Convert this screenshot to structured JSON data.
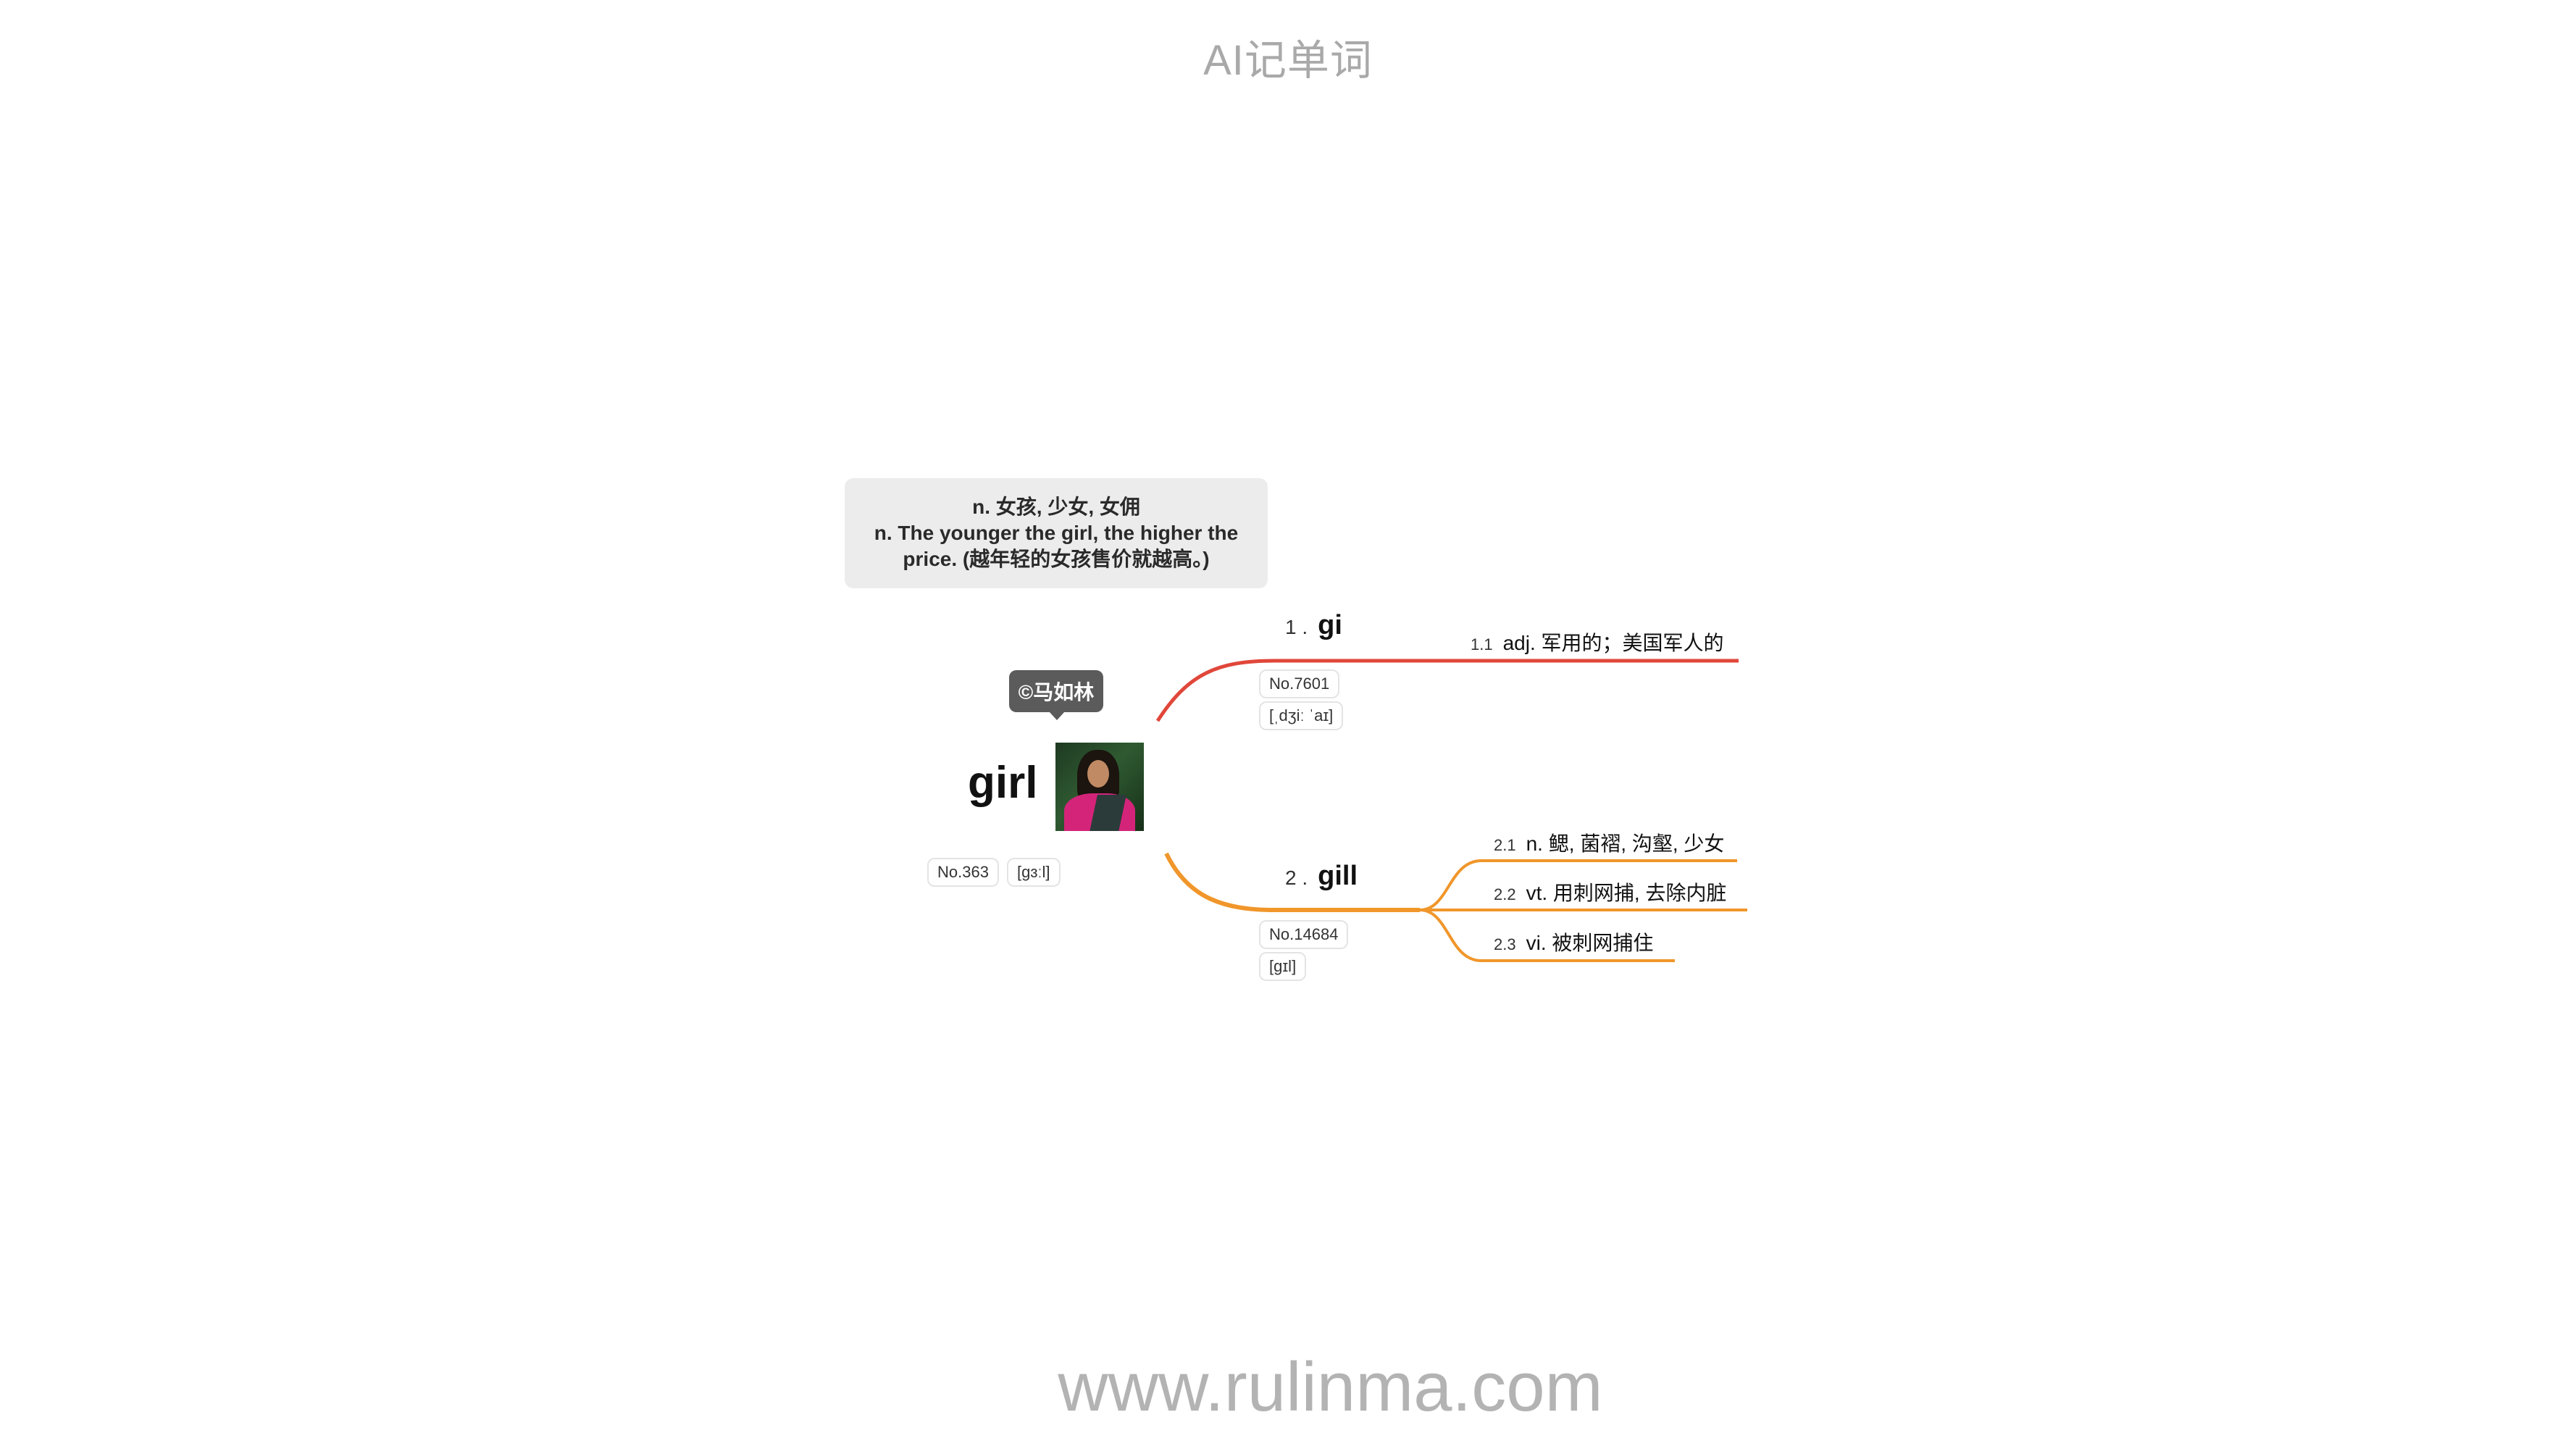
{
  "header": {
    "title": "AI记单词"
  },
  "footer": {
    "url": "www.rulinma.com"
  },
  "root": {
    "word": "girl",
    "credit": "©马如林",
    "number": "No.363",
    "phonetic": "[gɜːl]",
    "note": {
      "line1": "n. 女孩, 少女, 女佣",
      "line2": "n. The younger the girl, the higher the",
      "line3": "price. (越年轻的女孩售价就越高。)"
    }
  },
  "branches": [
    {
      "index": "1 .",
      "word": "gi",
      "number": "No.7601",
      "phonetic": "[ˌdʒiː ˈaɪ]",
      "color": "#e0473a",
      "senses": [
        {
          "index": "1.1",
          "text": "adj. 军用的；美国军人的"
        }
      ]
    },
    {
      "index": "2 .",
      "word": "gill",
      "number": "No.14684",
      "phonetic": "[gɪl]",
      "color": "#f0962a",
      "senses": [
        {
          "index": "2.1",
          "text": "n. 鳃, 菌褶, 沟壑, 少女"
        },
        {
          "index": "2.2",
          "text": "vt. 用刺网捕, 去除内脏"
        },
        {
          "index": "2.3",
          "text": "vi. 被刺网捕住"
        }
      ]
    }
  ]
}
